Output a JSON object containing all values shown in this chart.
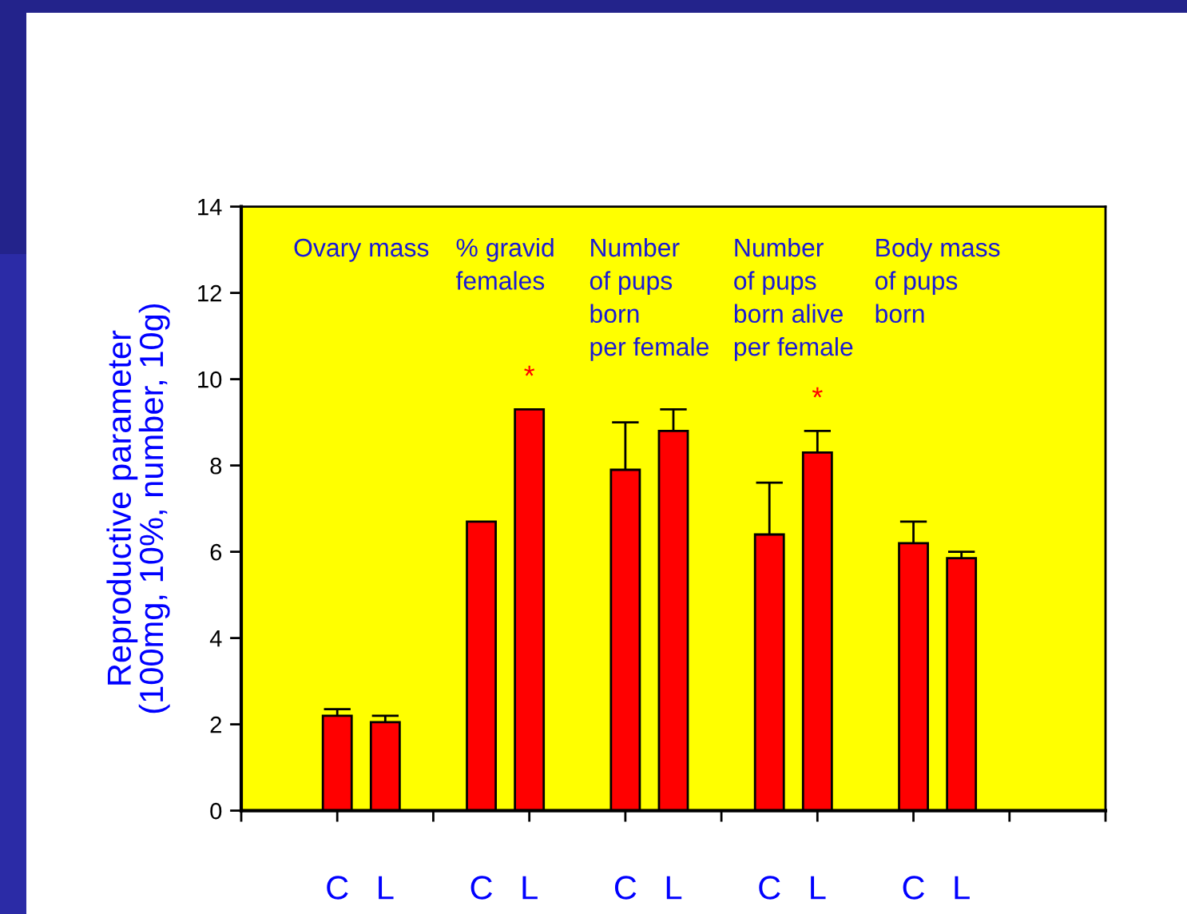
{
  "chart_data": {
    "type": "bar",
    "ylabel": "Reproductive parameter\n(100mg, 10%, number, 10g)",
    "categories": [
      "Ovary mass",
      "% gravid\nfemales",
      "Number\nof pups\nborn\nper female",
      "Number\nof pups\nborn alive\nper female",
      "Body mass\nof pups\nborn"
    ],
    "series": [
      {
        "name": "C",
        "color": "#ff0000",
        "values": [
          2.2,
          6.7,
          7.9,
          6.4,
          6.2
        ],
        "errors": [
          [
            2.2,
            2.35
          ],
          null,
          [
            7.9,
            9.0
          ],
          [
            6.4,
            7.6
          ],
          [
            6.2,
            6.7
          ]
        ]
      },
      {
        "name": "L",
        "color": "#ff0000",
        "values": [
          2.05,
          9.3,
          8.8,
          8.3,
          5.85
        ],
        "errors": [
          [
            2.05,
            2.2
          ],
          null,
          [
            8.8,
            9.3
          ],
          [
            8.3,
            8.8
          ],
          [
            5.85,
            6.0
          ]
        ],
        "value_labels": [
          null,
          "*",
          null,
          "*",
          null
        ]
      }
    ],
    "ylim": [
      0,
      14
    ],
    "yticks": [
      0,
      2,
      4,
      6,
      8,
      10,
      12,
      14
    ]
  }
}
